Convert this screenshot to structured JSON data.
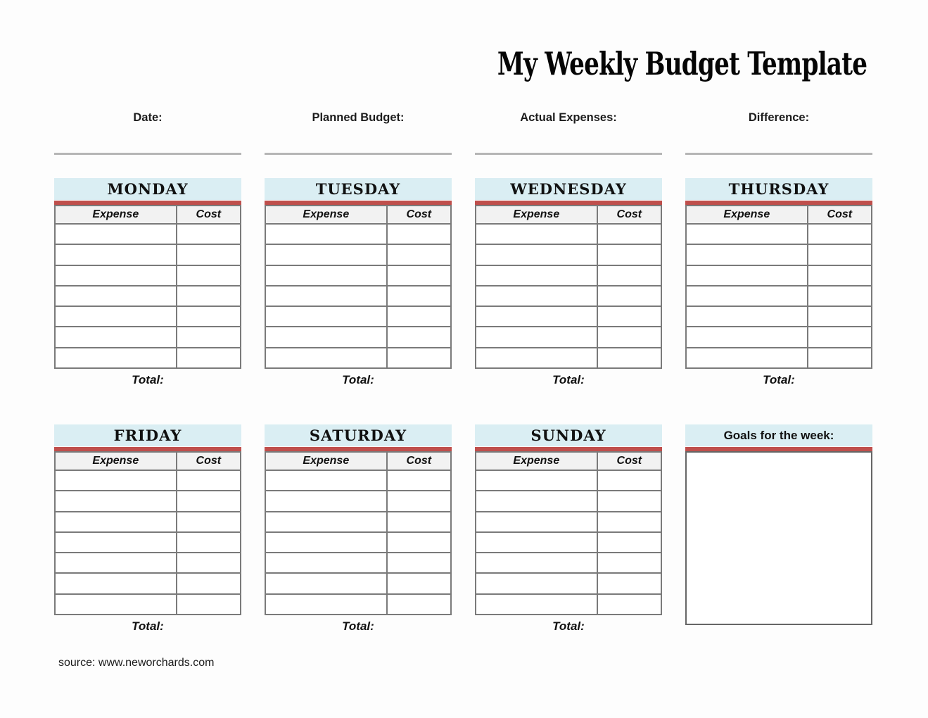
{
  "page": {
    "title": "My Weekly Budget Template",
    "source": "source: www.neworchards.com"
  },
  "header_fields": [
    {
      "label": "Date:"
    },
    {
      "label": "Planned Budget:"
    },
    {
      "label": "Actual Expenses:"
    },
    {
      "label": "Difference:"
    }
  ],
  "table": {
    "expense_header": "Expense",
    "cost_header": "Cost",
    "total_label": "Total:",
    "empty_rows": 7
  },
  "days_row1": [
    {
      "name": "MONDAY"
    },
    {
      "name": "TUESDAY"
    },
    {
      "name": "WEDNESDAY"
    },
    {
      "name": "THURSDAY"
    }
  ],
  "days_row2": [
    {
      "name": "FRIDAY"
    },
    {
      "name": "SATURDAY"
    },
    {
      "name": "SUNDAY"
    }
  ],
  "goals": {
    "label": "Goals for the week:"
  },
  "colors": {
    "day_header_bg": "#daeef3",
    "accent_red": "#bf4f4c",
    "subheader_bg": "#f2f2f2",
    "table_border": "#7a7a7a",
    "underline_gray": "#b6b6b6"
  }
}
